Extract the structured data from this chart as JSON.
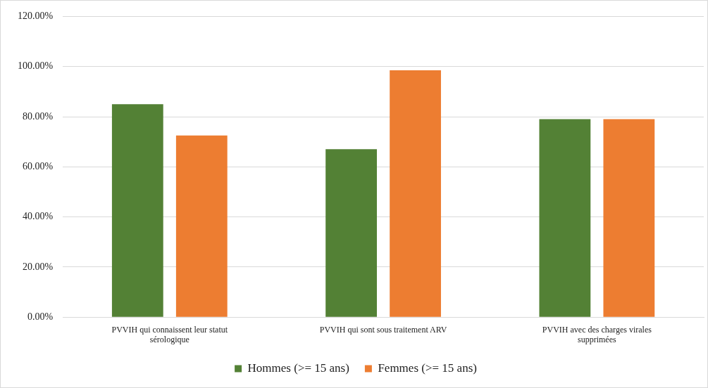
{
  "chart_data": {
    "type": "bar",
    "categories": [
      "PVVIH qui connaissent leur statut sérologique",
      "PVVIH qui sont sous traitement ARV",
      "PVVIH avec des charges virales supprimées"
    ],
    "series": [
      {
        "name": "Hommes (>= 15 ans)",
        "color": "#538135",
        "values": [
          85,
          67,
          79
        ]
      },
      {
        "name": "Femmes (>= 15 ans)",
        "color": "#ed7d31",
        "values": [
          72.5,
          98.5,
          79
        ]
      }
    ],
    "ylim": [
      0,
      120
    ],
    "yticks": [
      {
        "value": 0,
        "label": "0.00%"
      },
      {
        "value": 20,
        "label": "20.00%"
      },
      {
        "value": 40,
        "label": "40.00%"
      },
      {
        "value": 60,
        "label": "60.00%"
      },
      {
        "value": 80,
        "label": "80.00%"
      },
      {
        "value": 100,
        "label": "100.00%"
      },
      {
        "value": 120,
        "label": "120.00%"
      }
    ],
    "grid": "y",
    "legend": "bottom"
  }
}
